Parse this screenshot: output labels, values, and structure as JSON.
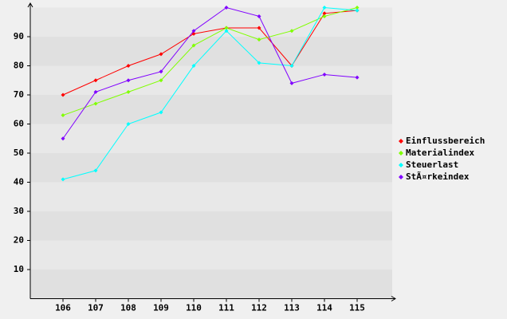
{
  "chart_data": {
    "type": "line",
    "categories": [
      "106",
      "107",
      "108",
      "109",
      "110",
      "111",
      "112",
      "113",
      "114",
      "115"
    ],
    "series": [
      {
        "name": "Einflussbereich",
        "color": "#ff0000",
        "values": [
          70,
          75,
          80,
          84,
          91,
          93,
          93,
          80,
          98,
          99
        ]
      },
      {
        "name": "Materialindex",
        "color": "#80ff00",
        "values": [
          63,
          67,
          71,
          75,
          87,
          93,
          89,
          92,
          97,
          100
        ]
      },
      {
        "name": "Steuerlast",
        "color": "#00ffff",
        "values": [
          41,
          44,
          60,
          64,
          80,
          92,
          81,
          80,
          100,
          99
        ]
      },
      {
        "name": "StÃ¤rkeindex",
        "color": "#8000ff",
        "values": [
          55,
          71,
          75,
          78,
          92,
          100,
          97,
          74,
          77,
          76
        ]
      }
    ],
    "ylim": [
      0,
      100
    ],
    "yticks": [
      10,
      20,
      30,
      40,
      50,
      60,
      70,
      80,
      90
    ],
    "legend": "right"
  }
}
